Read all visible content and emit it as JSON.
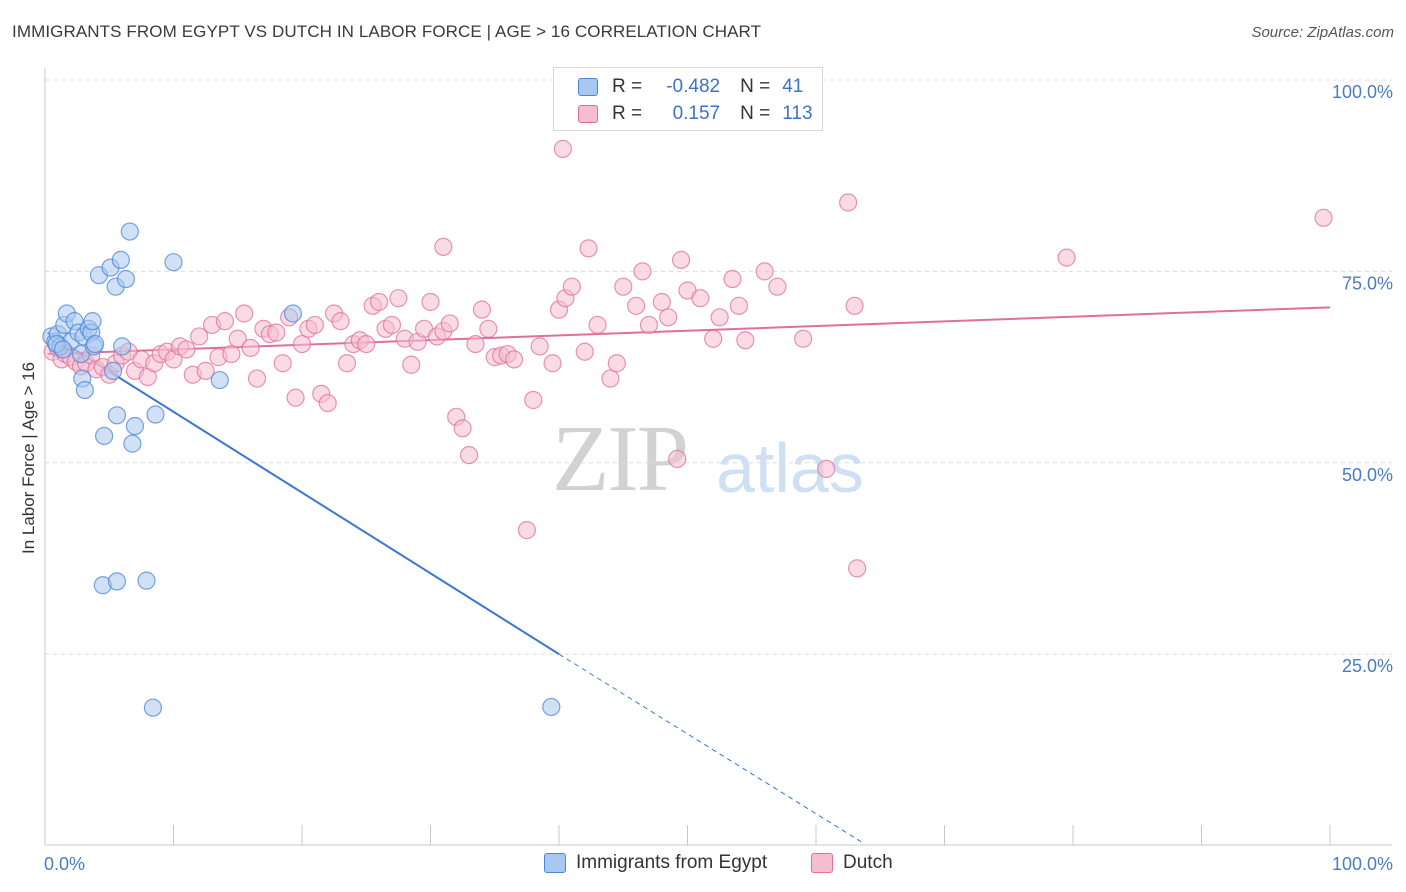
{
  "title": "IMMIGRANTS FROM EGYPT VS DUTCH IN LABOR FORCE | AGE > 16 CORRELATION CHART",
  "source": "Source: ZipAtlas.com",
  "watermark": {
    "zip": "ZIP",
    "atlas": "atlas"
  },
  "legend": {
    "r_label": "R =",
    "n_label": "N =",
    "rows": [
      {
        "r": "-0.482",
        "n": "41"
      },
      {
        "r": "0.157",
        "n": "113"
      }
    ]
  },
  "colors": {
    "egypt": "#4a86d8",
    "egypt_fill": "#a9c8ef",
    "dutch": "#e0709a",
    "dutch_fill": "#f6bdd0"
  },
  "chart_data": {
    "type": "scatter",
    "title": "IMMIGRANTS FROM EGYPT VS DUTCH IN LABOR FORCE | AGE > 16 CORRELATION CHART",
    "xlabel": "",
    "ylabel": "In Labor Force | Age > 16",
    "xlim": [
      0,
      100
    ],
    "ylim": [
      0,
      100
    ],
    "x_tick_labels": [
      "0.0%",
      "100.0%"
    ],
    "y_tick_labels": [
      "25.0%",
      "50.0%",
      "75.0%",
      "100.0%"
    ],
    "y_ticks": [
      25,
      50,
      75,
      100
    ],
    "grid": true,
    "legend_position": "bottom",
    "series": [
      {
        "name": "Immigrants from Egypt",
        "r": -0.482,
        "n": 41,
        "trend": {
          "x0": 0.2,
          "y0": 67.0,
          "x1": 40.0,
          "y1": 25.0,
          "dash_to_x": 63.5,
          "dash_to_y": 0.5
        },
        "points": [
          [
            0.5,
            66.5
          ],
          [
            0.8,
            65.8
          ],
          [
            1.0,
            66.8
          ],
          [
            1.2,
            65.2
          ],
          [
            1.5,
            68.0
          ],
          [
            1.7,
            69.5
          ],
          [
            2.0,
            65.8
          ],
          [
            2.3,
            68.5
          ],
          [
            2.6,
            67.0
          ],
          [
            2.8,
            64.2
          ],
          [
            3.0,
            66.5
          ],
          [
            2.9,
            61.0
          ],
          [
            3.1,
            59.5
          ],
          [
            3.4,
            67.5
          ],
          [
            3.6,
            67.0
          ],
          [
            3.7,
            68.5
          ],
          [
            3.8,
            65.2
          ],
          [
            3.9,
            65.5
          ],
          [
            4.2,
            74.5
          ],
          [
            4.6,
            53.5
          ],
          [
            5.1,
            75.5
          ],
          [
            5.3,
            62.0
          ],
          [
            5.5,
            73.0
          ],
          [
            5.6,
            56.2
          ],
          [
            5.9,
            76.5
          ],
          [
            6.0,
            65.2
          ],
          [
            6.3,
            74.0
          ],
          [
            6.6,
            80.2
          ],
          [
            6.8,
            52.5
          ],
          [
            7.0,
            54.8
          ],
          [
            8.6,
            56.3
          ],
          [
            10.0,
            76.2
          ],
          [
            13.6,
            60.8
          ],
          [
            19.3,
            69.5
          ],
          [
            4.5,
            34.0
          ],
          [
            5.6,
            34.5
          ],
          [
            7.9,
            34.6
          ],
          [
            8.4,
            18.0
          ],
          [
            39.4,
            18.1
          ],
          [
            0.9,
            65.5
          ],
          [
            1.4,
            64.8
          ]
        ]
      },
      {
        "name": "Dutch",
        "r": 0.157,
        "n": 113,
        "trend": {
          "x0": 0.2,
          "y0": 64.2,
          "x1": 100.0,
          "y1": 70.3
        },
        "points": [
          [
            0.6,
            64.5
          ],
          [
            1.0,
            65.0
          ],
          [
            1.3,
            63.5
          ],
          [
            1.6,
            64.2
          ],
          [
            2.0,
            63.8
          ],
          [
            2.4,
            63.2
          ],
          [
            2.8,
            62.6
          ],
          [
            3.2,
            63.0
          ],
          [
            3.6,
            64.0
          ],
          [
            4.0,
            62.2
          ],
          [
            4.5,
            62.5
          ],
          [
            5.0,
            61.5
          ],
          [
            5.5,
            63.0
          ],
          [
            6.0,
            64.0
          ],
          [
            6.5,
            64.5
          ],
          [
            7.0,
            62.0
          ],
          [
            7.5,
            63.5
          ],
          [
            8.0,
            61.2
          ],
          [
            8.5,
            63.0
          ],
          [
            9.0,
            64.2
          ],
          [
            9.5,
            64.5
          ],
          [
            10.0,
            63.5
          ],
          [
            10.5,
            65.2
          ],
          [
            11.0,
            64.8
          ],
          [
            11.5,
            61.5
          ],
          [
            12.0,
            66.5
          ],
          [
            12.5,
            62.0
          ],
          [
            13.0,
            68.0
          ],
          [
            13.5,
            63.8
          ],
          [
            14.0,
            68.5
          ],
          [
            14.5,
            64.2
          ],
          [
            15.0,
            66.2
          ],
          [
            15.5,
            69.5
          ],
          [
            16.0,
            65.0
          ],
          [
            16.5,
            61.0
          ],
          [
            17.0,
            67.5
          ],
          [
            17.5,
            66.8
          ],
          [
            18.0,
            67.0
          ],
          [
            18.5,
            63.0
          ],
          [
            19.0,
            69.0
          ],
          [
            19.5,
            58.5
          ],
          [
            20.0,
            65.5
          ],
          [
            20.5,
            67.5
          ],
          [
            21.0,
            68.0
          ],
          [
            21.5,
            59.0
          ],
          [
            22.0,
            57.8
          ],
          [
            22.5,
            69.5
          ],
          [
            23.0,
            68.5
          ],
          [
            23.5,
            63.0
          ],
          [
            24.0,
            65.5
          ],
          [
            24.5,
            66.0
          ],
          [
            25.0,
            65.5
          ],
          [
            25.5,
            70.5
          ],
          [
            26.0,
            71.0
          ],
          [
            26.5,
            67.5
          ],
          [
            27.0,
            68.0
          ],
          [
            27.5,
            71.5
          ],
          [
            28.0,
            66.2
          ],
          [
            28.5,
            62.8
          ],
          [
            29.0,
            65.8
          ],
          [
            29.5,
            67.5
          ],
          [
            30.0,
            71.0
          ],
          [
            30.5,
            66.5
          ],
          [
            31.0,
            67.2
          ],
          [
            31.5,
            68.2
          ],
          [
            32.0,
            56.0
          ],
          [
            32.5,
            54.5
          ],
          [
            33.0,
            51.0
          ],
          [
            33.5,
            65.5
          ],
          [
            34.0,
            70.0
          ],
          [
            34.5,
            67.5
          ],
          [
            35.0,
            63.8
          ],
          [
            35.5,
            64.0
          ],
          [
            36.0,
            64.2
          ],
          [
            36.5,
            63.5
          ],
          [
            38.0,
            58.2
          ],
          [
            38.5,
            65.2
          ],
          [
            39.5,
            63.0
          ],
          [
            40.0,
            70.0
          ],
          [
            40.5,
            71.5
          ],
          [
            41.0,
            73.0
          ],
          [
            42.0,
            64.5
          ],
          [
            43.0,
            68.0
          ],
          [
            44.0,
            61.0
          ],
          [
            44.5,
            63.0
          ],
          [
            45.0,
            73.0
          ],
          [
            46.0,
            70.5
          ],
          [
            46.5,
            75.0
          ],
          [
            47.0,
            68.0
          ],
          [
            48.0,
            71.0
          ],
          [
            48.5,
            69.0
          ],
          [
            49.5,
            76.5
          ],
          [
            50.0,
            72.5
          ],
          [
            51.0,
            71.5
          ],
          [
            52.0,
            66.2
          ],
          [
            52.5,
            69.0
          ],
          [
            53.5,
            74.0
          ],
          [
            54.0,
            70.5
          ],
          [
            54.5,
            66.0
          ],
          [
            56.0,
            75.0
          ],
          [
            57.0,
            73.0
          ],
          [
            59.0,
            66.2
          ],
          [
            62.5,
            84.0
          ],
          [
            63.0,
            70.5
          ],
          [
            42.3,
            78.0
          ],
          [
            40.3,
            91.0
          ],
          [
            31.0,
            78.2
          ],
          [
            37.5,
            41.2
          ],
          [
            49.2,
            50.5
          ],
          [
            60.8,
            49.2
          ],
          [
            63.2,
            36.2
          ],
          [
            79.5,
            76.8
          ],
          [
            99.5,
            82.0
          ]
        ]
      }
    ]
  }
}
